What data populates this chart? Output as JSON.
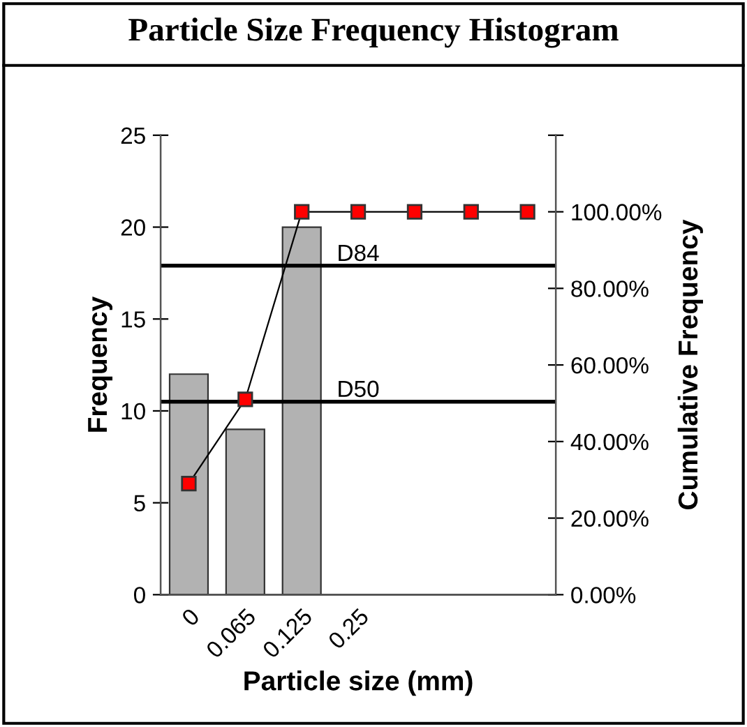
{
  "chart_data": {
    "type": "bar",
    "title": "Particle Size Frequency Histogram",
    "xlabel": "Particle size (mm)",
    "ylabel": "Frequency",
    "y2label": "Cumulative Frequency",
    "categories": [
      "0",
      "0.065",
      "0.125",
      "0.25",
      null,
      null,
      null
    ],
    "series": [
      {
        "color": "#b2b2b2",
        "values": [
          12,
          9,
          20,
          null,
          null,
          null,
          null
        ]
      },
      {
        "type": "line",
        "axis": "y2",
        "color": "#ff0000",
        "marker": "square",
        "line_style": "solid",
        "values": [
          29,
          51,
          100,
          100,
          100,
          100,
          100
        ]
      }
    ],
    "ylim": [
      0,
      25
    ],
    "yticks": [
      0,
      5,
      10,
      15,
      20,
      25
    ],
    "y2lim": [
      0,
      120
    ],
    "y2ticks": [
      {
        "value": 0,
        "label": "0.00%"
      },
      {
        "value": 20,
        "label": "20.00%"
      },
      {
        "value": 40,
        "label": "40.00%"
      },
      {
        "value": 60,
        "label": "60.00%"
      },
      {
        "value": 80,
        "label": "80.00%"
      },
      {
        "value": 100,
        "label": "100.00%"
      },
      {
        "value": 120,
        "label": null
      }
    ],
    "ref_lines": [
      {
        "axis": "y",
        "value": 17.9,
        "label": "D84",
        "color": "#000000"
      },
      {
        "axis": "y",
        "value": 10.5,
        "label": "D50",
        "color": "#000000"
      }
    ],
    "grid": false,
    "legend": false
  }
}
